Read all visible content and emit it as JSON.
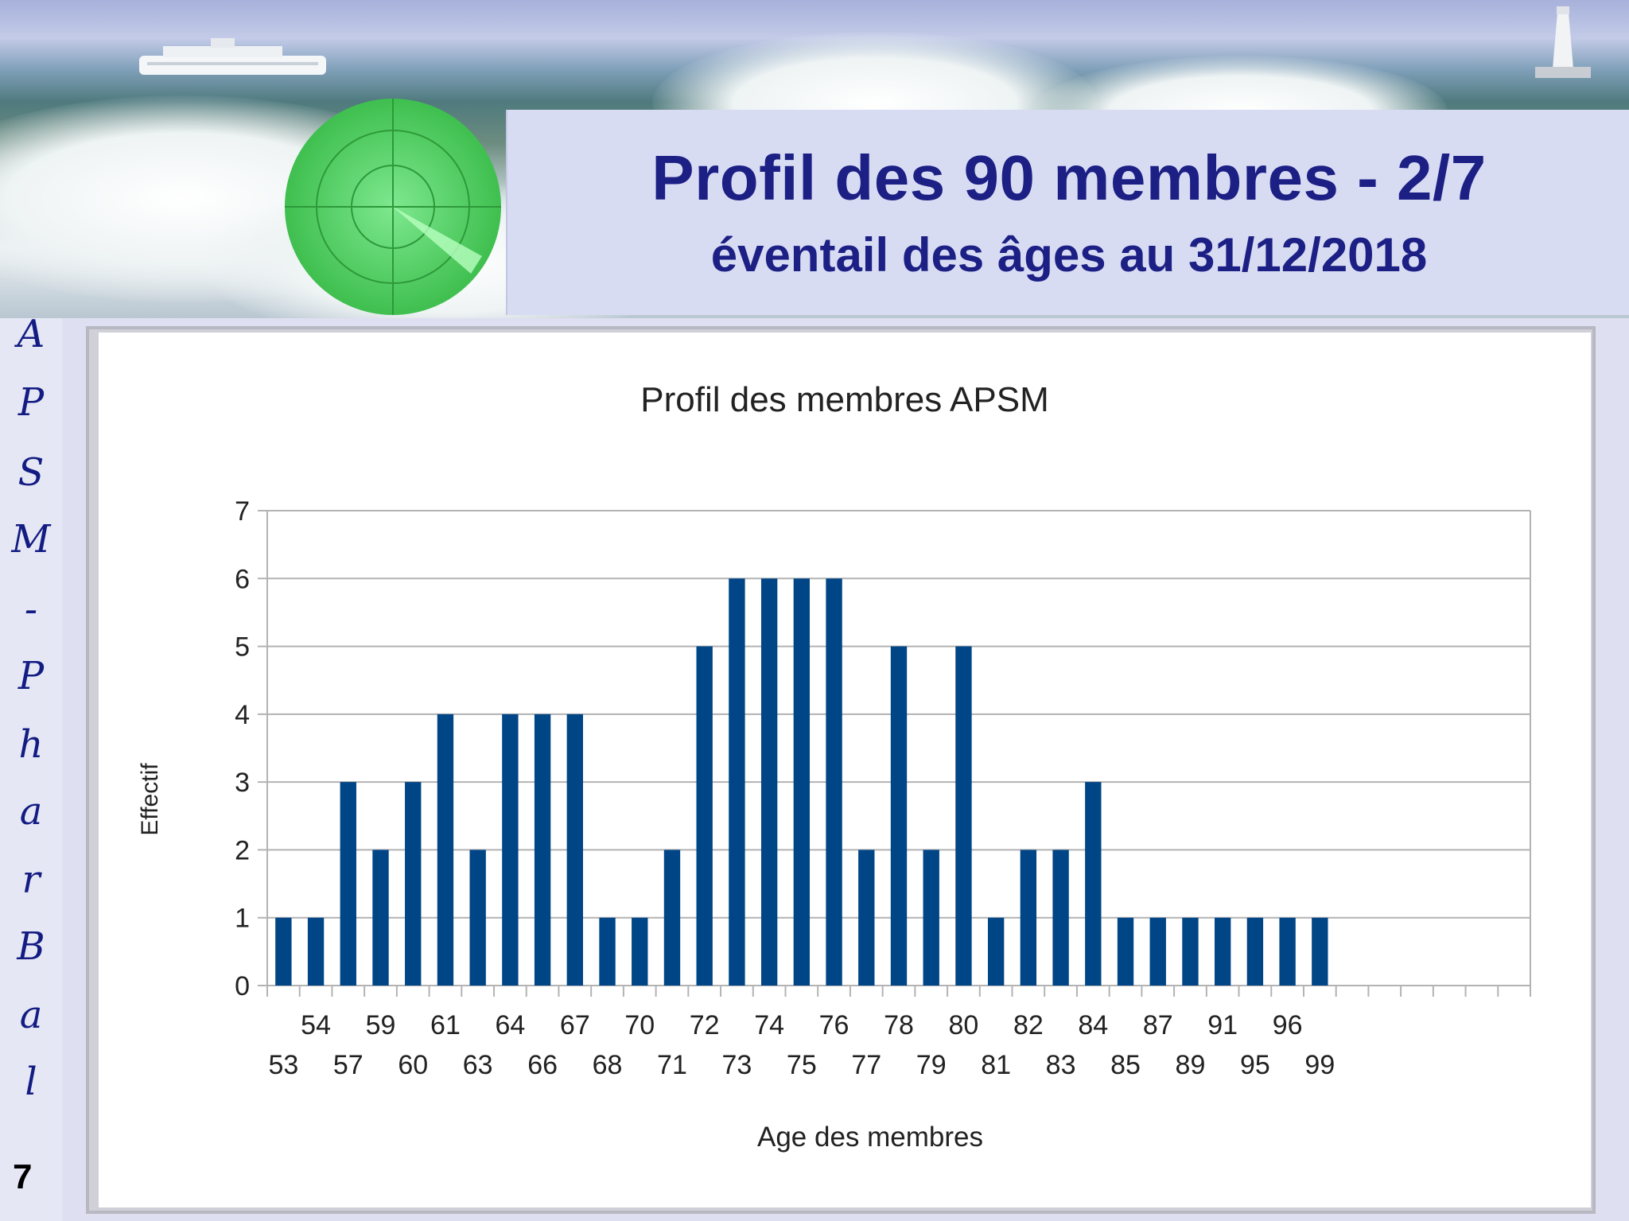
{
  "slide": {
    "title": "Profil des 90 membres - 2/7",
    "subtitle": "éventail des âges au 31/12/2018",
    "sidebar_text": [
      "A",
      "P",
      "S",
      "M",
      "-",
      "P",
      "h",
      "a",
      "r",
      "B",
      "a",
      "l"
    ],
    "page_number": "7"
  },
  "colors": {
    "title": "#1c1f84",
    "bar": "#004586",
    "grid": "#b3b3b3"
  },
  "icons": [
    "ship-image",
    "lighthouse-image",
    "radar-icon"
  ],
  "chart_data": {
    "type": "bar",
    "title": "Profil des membres APSM",
    "xlabel": "Age des membres",
    "ylabel": "Effectif",
    "ylim": [
      0,
      7
    ],
    "yticks": [
      0,
      1,
      2,
      3,
      4,
      5,
      6,
      7
    ],
    "grid": true,
    "legend": "none",
    "categories": [
      "53",
      "54",
      "57",
      "59",
      "60",
      "61",
      "63",
      "64",
      "66",
      "67",
      "68",
      "70",
      "71",
      "72",
      "73",
      "74",
      "75",
      "76",
      "77",
      "78",
      "79",
      "80",
      "81",
      "82",
      "83",
      "84",
      "85",
      "87",
      "89",
      "91",
      "95",
      "96",
      "99"
    ],
    "values": [
      1,
      1,
      3,
      2,
      3,
      4,
      2,
      4,
      4,
      4,
      1,
      1,
      2,
      5,
      6,
      6,
      6,
      6,
      2,
      5,
      2,
      5,
      1,
      2,
      2,
      3,
      1,
      1,
      1,
      1,
      1,
      1,
      1
    ],
    "empty_slots_after": 6
  }
}
